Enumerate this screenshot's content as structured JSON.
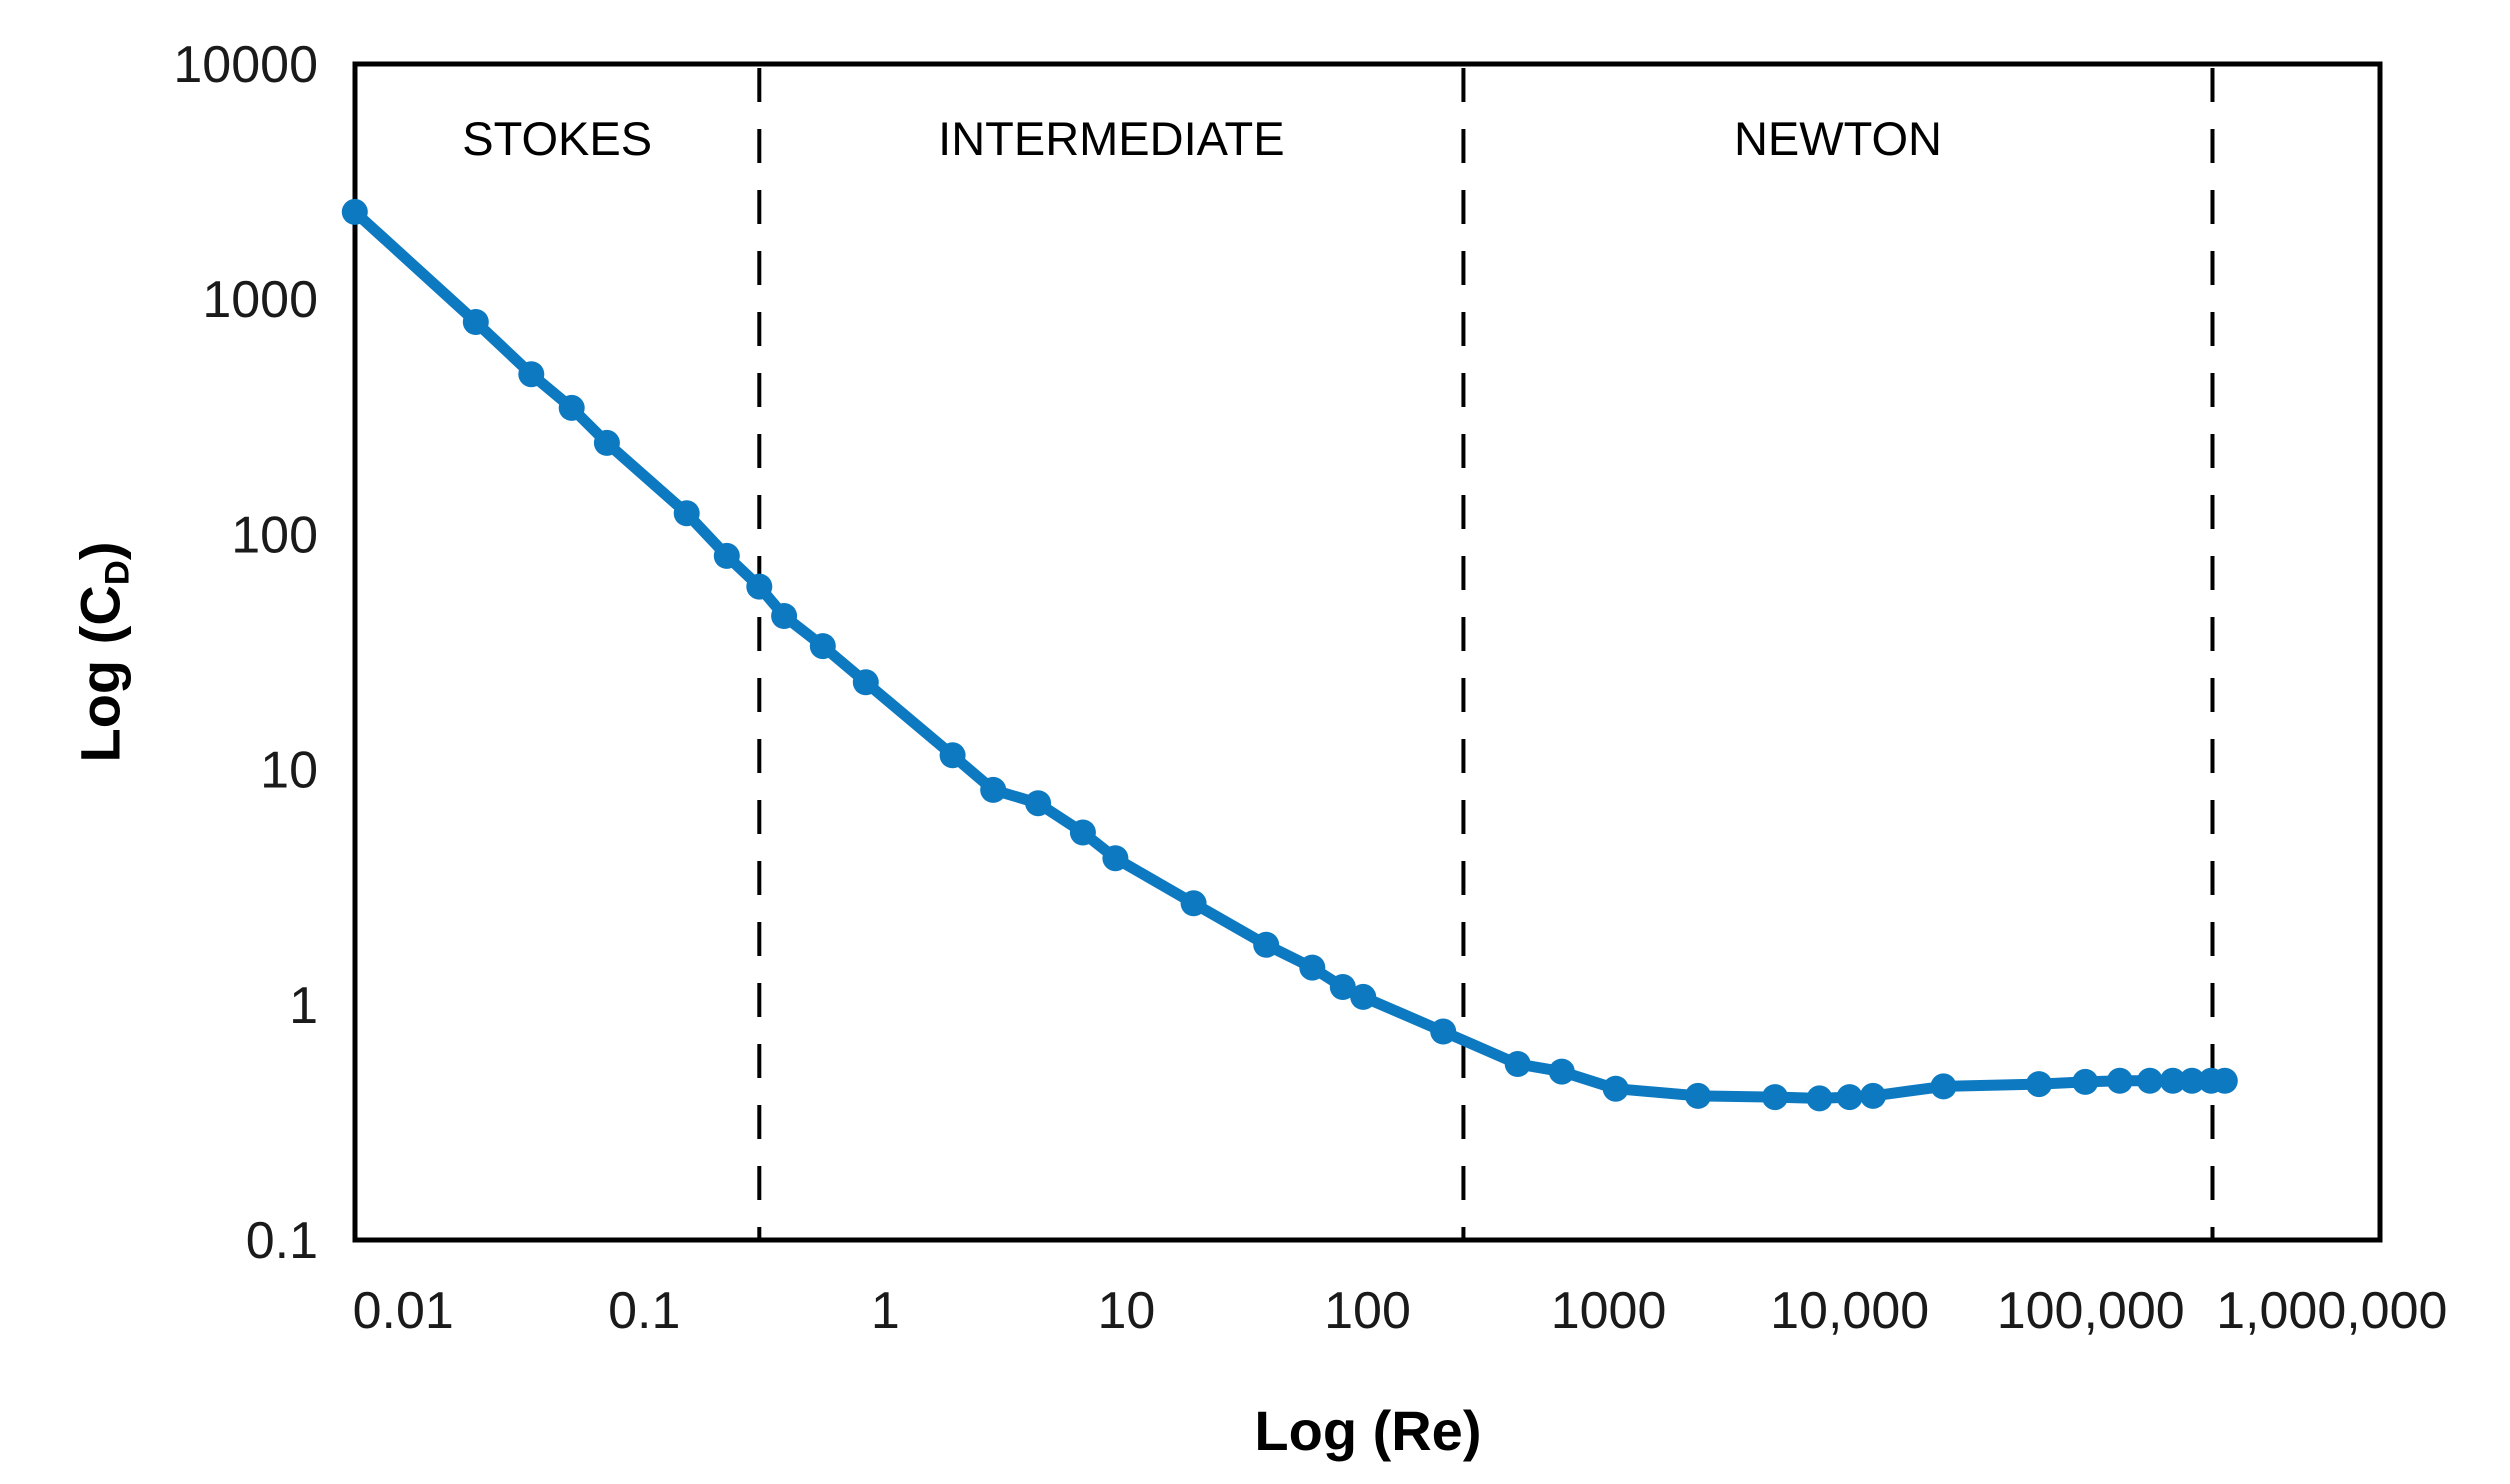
{
  "figure": {
    "background": "#ffffff",
    "text_color": "#000000"
  },
  "chart_data": {
    "type": "line",
    "title": "",
    "xlabel": "Log (Re)",
    "ylabel_main": "Log (C",
    "ylabel_sub": "D",
    "ylabel_close": ")",
    "grid": false,
    "legend": "none",
    "x_scale": "log",
    "y_scale": "log",
    "x_log_range": [
      -2.2,
      6.2
    ],
    "y_log_range": [
      -1,
      4
    ],
    "x_ticks": [
      {
        "v": 0.01,
        "label": "0.01"
      },
      {
        "v": 0.1,
        "label": "0.1"
      },
      {
        "v": 1,
        "label": "1"
      },
      {
        "v": 10,
        "label": "10"
      },
      {
        "v": 100,
        "label": "100"
      },
      {
        "v": 1000,
        "label": "1000"
      },
      {
        "v": 10000,
        "label": "10,000"
      },
      {
        "v": 100000,
        "label": "100,000"
      },
      {
        "v": 1000000,
        "label": "1,000,000"
      }
    ],
    "y_ticks": [
      {
        "v": 10000,
        "label": "10000"
      },
      {
        "v": 1000,
        "label": "1000"
      },
      {
        "v": 100,
        "label": "100"
      },
      {
        "v": 10,
        "label": "10"
      },
      {
        "v": 1,
        "label": "1"
      },
      {
        "v": 0.1,
        "label": "0.1"
      }
    ],
    "regions": [
      {
        "label": "STOKES"
      },
      {
        "label": "INTERMEDIATE"
      },
      {
        "label": "NEWTON"
      }
    ],
    "region_boundaries_re": [
      0.3,
      250,
      320000
    ],
    "boundary_line_style": "dashed",
    "series": [
      {
        "name": "drag-coefficient-curve",
        "color": "#0d79c1",
        "marker": "circle",
        "points": [
          [
            0.0063,
            2350
          ],
          [
            0.02,
            800
          ],
          [
            0.034,
            480
          ],
          [
            0.05,
            345
          ],
          [
            0.07,
            245
          ],
          [
            0.15,
            123
          ],
          [
            0.22,
            81
          ],
          [
            0.3,
            60
          ],
          [
            0.38,
            45
          ],
          [
            0.55,
            33.5
          ],
          [
            0.83,
            23.5
          ],
          [
            1.9,
            11.5
          ],
          [
            2.8,
            8.2
          ],
          [
            4.3,
            7.2
          ],
          [
            6.6,
            5.4
          ],
          [
            9.0,
            4.2
          ],
          [
            19,
            2.7
          ],
          [
            38,
            1.8
          ],
          [
            59,
            1.44
          ],
          [
            79,
            1.19
          ],
          [
            96,
            1.08
          ],
          [
            206,
            0.77
          ],
          [
            420,
            0.56
          ],
          [
            640,
            0.52
          ],
          [
            1070,
            0.44
          ],
          [
            2350,
            0.41
          ],
          [
            4900,
            0.405
          ],
          [
            7500,
            0.4
          ],
          [
            10000,
            0.405
          ],
          [
            12500,
            0.41
          ],
          [
            24500,
            0.45
          ],
          [
            61000,
            0.46
          ],
          [
            95000,
            0.47
          ],
          [
            132000,
            0.475
          ],
          [
            176000,
            0.475
          ],
          [
            219000,
            0.475
          ],
          [
            263000,
            0.475
          ],
          [
            316000,
            0.475
          ],
          [
            360000,
            0.475
          ]
        ]
      }
    ]
  }
}
